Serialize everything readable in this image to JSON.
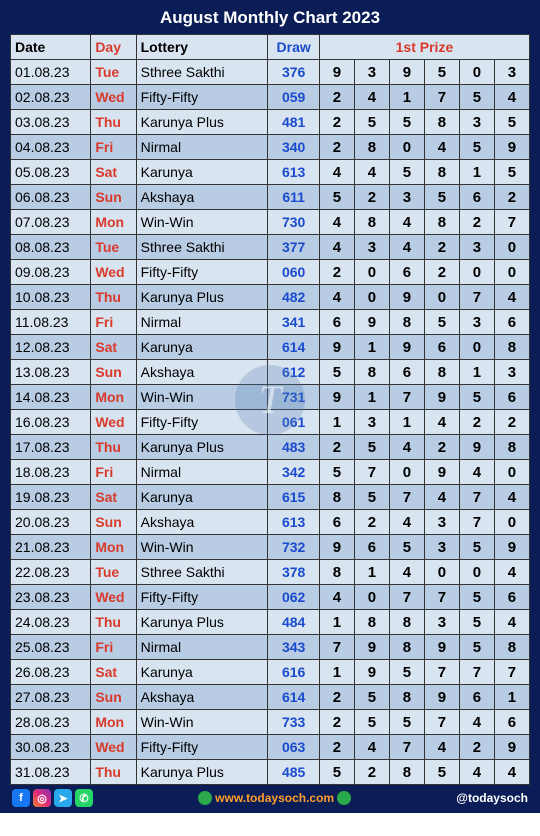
{
  "title": "August Monthly Chart 2023",
  "headers": {
    "date": "Date",
    "day": "Day",
    "lottery": "Lottery",
    "draw": "Draw",
    "prize": "1st Prize"
  },
  "watermark": "T",
  "footer": {
    "site": "www.todaysoch.com",
    "handle": "@todaysoch"
  },
  "colors": {
    "page_bg": "#0a1d56",
    "header_text": "#d93a2b",
    "day_text": "#d93a2b",
    "draw_text": "#1a4bcf",
    "row_norm": "#d8e4f0",
    "row_alt": "#b8cce4",
    "title_text": "#ffffff"
  },
  "rows": [
    {
      "date": "01.08.23",
      "day": "Tue",
      "lottery": "Sthree Sakthi",
      "draw": "376",
      "p": [
        "9",
        "3",
        "9",
        "5",
        "0",
        "3"
      ],
      "alt": 0
    },
    {
      "date": "02.08.23",
      "day": "Wed",
      "lottery": "Fifty-Fifty",
      "draw": "059",
      "p": [
        "2",
        "4",
        "1",
        "7",
        "5",
        "4"
      ],
      "alt": 1
    },
    {
      "date": "03.08.23",
      "day": "Thu",
      "lottery": "Karunya Plus",
      "draw": "481",
      "p": [
        "2",
        "5",
        "5",
        "8",
        "3",
        "5"
      ],
      "alt": 0
    },
    {
      "date": "04.08.23",
      "day": "Fri",
      "lottery": "Nirmal",
      "draw": "340",
      "p": [
        "2",
        "8",
        "0",
        "4",
        "5",
        "9"
      ],
      "alt": 1
    },
    {
      "date": "05.08.23",
      "day": "Sat",
      "lottery": "Karunya",
      "draw": "613",
      "p": [
        "4",
        "4",
        "5",
        "8",
        "1",
        "5"
      ],
      "alt": 0
    },
    {
      "date": "06.08.23",
      "day": "Sun",
      "lottery": "Akshaya",
      "draw": "611",
      "p": [
        "5",
        "2",
        "3",
        "5",
        "6",
        "2"
      ],
      "alt": 1
    },
    {
      "date": "07.08.23",
      "day": "Mon",
      "lottery": "Win-Win",
      "draw": "730",
      "p": [
        "4",
        "8",
        "4",
        "8",
        "2",
        "7"
      ],
      "alt": 0
    },
    {
      "date": "08.08.23",
      "day": "Tue",
      "lottery": "Sthree Sakthi",
      "draw": "377",
      "p": [
        "4",
        "3",
        "4",
        "2",
        "3",
        "0"
      ],
      "alt": 1
    },
    {
      "date": "09.08.23",
      "day": "Wed",
      "lottery": "Fifty-Fifty",
      "draw": "060",
      "p": [
        "2",
        "0",
        "6",
        "2",
        "0",
        "0"
      ],
      "alt": 0
    },
    {
      "date": "10.08.23",
      "day": "Thu",
      "lottery": "Karunya Plus",
      "draw": "482",
      "p": [
        "4",
        "0",
        "9",
        "0",
        "7",
        "4"
      ],
      "alt": 1
    },
    {
      "date": "11.08.23",
      "day": "Fri",
      "lottery": "Nirmal",
      "draw": "341",
      "p": [
        "6",
        "9",
        "8",
        "5",
        "3",
        "6"
      ],
      "alt": 0
    },
    {
      "date": "12.08.23",
      "day": "Sat",
      "lottery": "Karunya",
      "draw": "614",
      "p": [
        "9",
        "1",
        "9",
        "6",
        "0",
        "8"
      ],
      "alt": 1
    },
    {
      "date": "13.08.23",
      "day": "Sun",
      "lottery": "Akshaya",
      "draw": "612",
      "p": [
        "5",
        "8",
        "6",
        "8",
        "1",
        "3"
      ],
      "alt": 0
    },
    {
      "date": "14.08.23",
      "day": "Mon",
      "lottery": "Win-Win",
      "draw": "731",
      "p": [
        "9",
        "1",
        "7",
        "9",
        "5",
        "6"
      ],
      "alt": 1
    },
    {
      "date": "16.08.23",
      "day": "Wed",
      "lottery": "Fifty-Fifty",
      "draw": "061",
      "p": [
        "1",
        "3",
        "1",
        "4",
        "2",
        "2"
      ],
      "alt": 0
    },
    {
      "date": "17.08.23",
      "day": "Thu",
      "lottery": "Karunya Plus",
      "draw": "483",
      "p": [
        "2",
        "5",
        "4",
        "2",
        "9",
        "8"
      ],
      "alt": 1
    },
    {
      "date": "18.08.23",
      "day": "Fri",
      "lottery": "Nirmal",
      "draw": "342",
      "p": [
        "5",
        "7",
        "0",
        "9",
        "4",
        "0"
      ],
      "alt": 0
    },
    {
      "date": "19.08.23",
      "day": "Sat",
      "lottery": "Karunya",
      "draw": "615",
      "p": [
        "8",
        "5",
        "7",
        "4",
        "7",
        "4"
      ],
      "alt": 1
    },
    {
      "date": "20.08.23",
      "day": "Sun",
      "lottery": "Akshaya",
      "draw": "613",
      "p": [
        "6",
        "2",
        "4",
        "3",
        "7",
        "0"
      ],
      "alt": 0
    },
    {
      "date": "21.08.23",
      "day": "Mon",
      "lottery": "Win-Win",
      "draw": "732",
      "p": [
        "9",
        "6",
        "5",
        "3",
        "5",
        "9"
      ],
      "alt": 1
    },
    {
      "date": "22.08.23",
      "day": "Tue",
      "lottery": "Sthree Sakthi",
      "draw": "378",
      "p": [
        "8",
        "1",
        "4",
        "0",
        "0",
        "4"
      ],
      "alt": 0
    },
    {
      "date": "23.08.23",
      "day": "Wed",
      "lottery": "Fifty-Fifty",
      "draw": "062",
      "p": [
        "4",
        "0",
        "7",
        "7",
        "5",
        "6"
      ],
      "alt": 1
    },
    {
      "date": "24.08.23",
      "day": "Thu",
      "lottery": "Karunya Plus",
      "draw": "484",
      "p": [
        "1",
        "8",
        "8",
        "3",
        "5",
        "4"
      ],
      "alt": 0
    },
    {
      "date": "25.08.23",
      "day": "Fri",
      "lottery": "Nirmal",
      "draw": "343",
      "p": [
        "7",
        "9",
        "8",
        "9",
        "5",
        "8"
      ],
      "alt": 1
    },
    {
      "date": "26.08.23",
      "day": "Sat",
      "lottery": "Karunya",
      "draw": "616",
      "p": [
        "1",
        "9",
        "5",
        "7",
        "7",
        "7"
      ],
      "alt": 0
    },
    {
      "date": "27.08.23",
      "day": "Sun",
      "lottery": "Akshaya",
      "draw": "614",
      "p": [
        "2",
        "5",
        "8",
        "9",
        "6",
        "1"
      ],
      "alt": 1
    },
    {
      "date": "28.08.23",
      "day": "Mon",
      "lottery": "Win-Win",
      "draw": "733",
      "p": [
        "2",
        "5",
        "5",
        "7",
        "4",
        "6"
      ],
      "alt": 0
    },
    {
      "date": "30.08.23",
      "day": "Wed",
      "lottery": "Fifty-Fifty",
      "draw": "063",
      "p": [
        "2",
        "4",
        "7",
        "4",
        "2",
        "9"
      ],
      "alt": 1
    },
    {
      "date": "31.08.23",
      "day": "Thu",
      "lottery": "Karunya Plus",
      "draw": "485",
      "p": [
        "5",
        "2",
        "8",
        "5",
        "4",
        "4"
      ],
      "alt": 0
    }
  ]
}
